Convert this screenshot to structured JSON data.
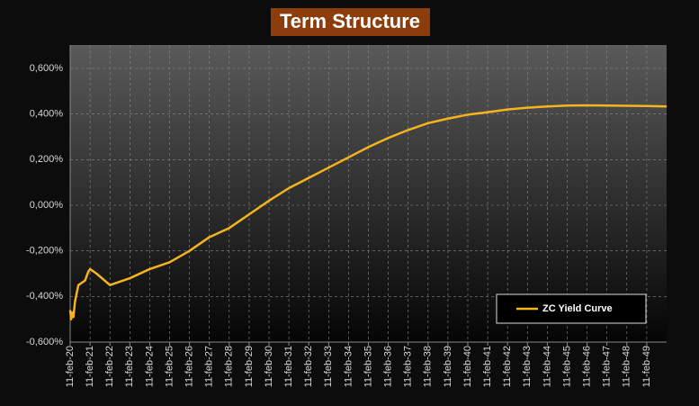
{
  "chart_data": {
    "type": "line",
    "title": "Term Structure",
    "x": [
      "2020-02-11",
      "2020-03-01",
      "2020-03-20",
      "2020-04-11",
      "2020-05-11",
      "2020-07-11",
      "2020-09-11",
      "2020-11-11",
      "2021-01-11",
      "2021-02-11",
      "2021-06-11",
      "2022-02-11",
      "2023-02-11",
      "2024-02-11",
      "2025-02-11",
      "2026-02-11",
      "2027-02-11",
      "2028-02-11",
      "2029-02-11",
      "2030-02-11",
      "2031-02-11",
      "2032-02-11",
      "2033-02-11",
      "2034-02-11",
      "2035-02-11",
      "2036-02-11",
      "2037-02-11",
      "2038-02-11",
      "2039-02-11",
      "2040-02-11",
      "2041-02-11",
      "2042-02-11",
      "2043-02-11",
      "2044-02-11",
      "2045-02-11",
      "2046-02-11",
      "2047-02-11",
      "2048-02-11",
      "2049-02-11",
      "2050-02-11"
    ],
    "series": [
      {
        "name": "ZC Yield Curve",
        "color": "#f5b41e",
        "values": [
          -0.46,
          -0.5,
          -0.47,
          -0.49,
          -0.42,
          -0.35,
          -0.34,
          -0.33,
          -0.29,
          -0.28,
          -0.3,
          -0.35,
          -0.32,
          -0.28,
          -0.25,
          -0.2,
          -0.14,
          -0.1,
          -0.04,
          0.02,
          0.075,
          0.12,
          0.165,
          0.21,
          0.255,
          0.295,
          0.33,
          0.36,
          0.38,
          0.397,
          0.408,
          0.42,
          0.428,
          0.433,
          0.437,
          0.438,
          0.437,
          0.436,
          0.435,
          0.433
        ]
      }
    ],
    "xlim": [
      "2020-02-11",
      "2050-02-11"
    ],
    "xticks": [
      {
        "value": "2020-02-11",
        "label": "11-feb-20"
      },
      {
        "value": "2021-02-11",
        "label": "11-feb-21"
      },
      {
        "value": "2022-02-11",
        "label": "11-feb-22"
      },
      {
        "value": "2023-02-11",
        "label": "11-feb-23"
      },
      {
        "value": "2024-02-11",
        "label": "11-feb-24"
      },
      {
        "value": "2025-02-11",
        "label": "11-feb-25"
      },
      {
        "value": "2026-02-11",
        "label": "11-feb-26"
      },
      {
        "value": "2027-02-11",
        "label": "11-feb-27"
      },
      {
        "value": "2028-02-11",
        "label": "11-feb-28"
      },
      {
        "value": "2029-02-11",
        "label": "11-feb-29"
      },
      {
        "value": "2030-02-11",
        "label": "11-feb-30"
      },
      {
        "value": "2031-02-11",
        "label": "11-feb-31"
      },
      {
        "value": "2032-02-11",
        "label": "11-feb-32"
      },
      {
        "value": "2033-02-11",
        "label": "11-feb-33"
      },
      {
        "value": "2034-02-11",
        "label": "11-feb-34"
      },
      {
        "value": "2035-02-11",
        "label": "11-feb-35"
      },
      {
        "value": "2036-02-11",
        "label": "11-feb-36"
      },
      {
        "value": "2037-02-11",
        "label": "11-feb-37"
      },
      {
        "value": "2038-02-11",
        "label": "11-feb-38"
      },
      {
        "value": "2039-02-11",
        "label": "11-feb-39"
      },
      {
        "value": "2040-02-11",
        "label": "11-feb-40"
      },
      {
        "value": "2041-02-11",
        "label": "11-feb-41"
      },
      {
        "value": "2042-02-11",
        "label": "11-feb-42"
      },
      {
        "value": "2043-02-11",
        "label": "11-feb-43"
      },
      {
        "value": "2044-02-11",
        "label": "11-feb-44"
      },
      {
        "value": "2045-02-11",
        "label": "11-feb-45"
      },
      {
        "value": "2046-02-11",
        "label": "11-feb-46"
      },
      {
        "value": "2047-02-11",
        "label": "11-feb-47"
      },
      {
        "value": "2048-02-11",
        "label": "11-feb-48"
      },
      {
        "value": "2049-02-11",
        "label": "11-feb-49"
      }
    ],
    "ylim": [
      -0.6,
      0.6
    ],
    "yticks": [
      {
        "value": -0.6,
        "label": "-0,600%"
      },
      {
        "value": -0.4,
        "label": "-0,400%"
      },
      {
        "value": -0.2,
        "label": "-0,200%"
      },
      {
        "value": 0,
        "label": "0,000%"
      },
      {
        "value": 0.2,
        "label": "0,200%"
      },
      {
        "value": 0.4,
        "label": "0,400%"
      },
      {
        "value": 0.6,
        "label": "0,600%"
      }
    ],
    "grid": true,
    "legend": "lower-right"
  }
}
